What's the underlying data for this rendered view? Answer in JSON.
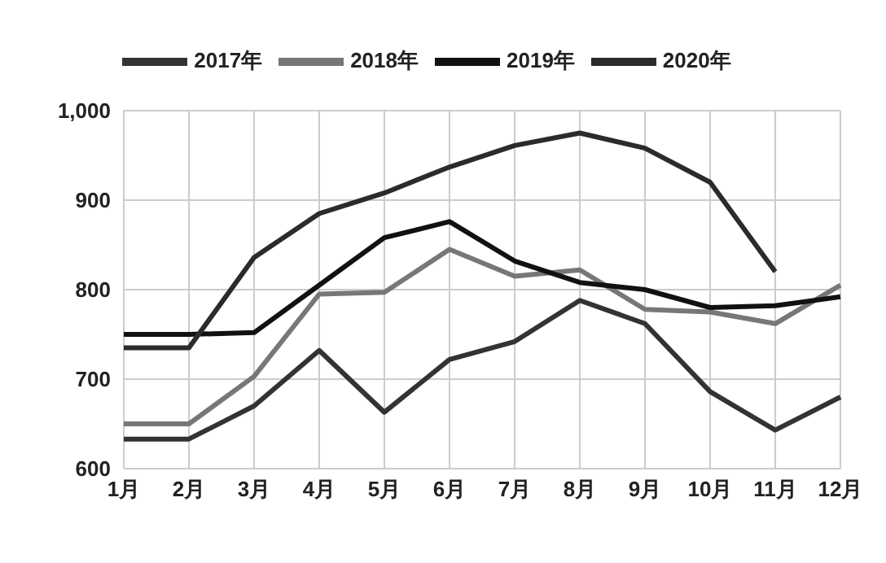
{
  "chart_data": {
    "type": "line",
    "categories": [
      "1月",
      "2月",
      "3月",
      "4月",
      "5月",
      "6月",
      "7月",
      "8月",
      "9月",
      "10月",
      "11月",
      "12月"
    ],
    "series": [
      {
        "name": "2017年",
        "color": "#333333",
        "values": [
          633,
          633,
          670,
          732,
          663,
          722,
          742,
          788,
          762,
          686,
          643,
          680
        ]
      },
      {
        "name": "2018年",
        "color": "#777777",
        "values": [
          650,
          650,
          703,
          795,
          797,
          845,
          815,
          822,
          778,
          775,
          762,
          805
        ]
      },
      {
        "name": "2019年",
        "color": "#111111",
        "values": [
          750,
          750,
          752,
          805,
          858,
          876,
          832,
          808,
          800,
          780,
          782,
          792
        ]
      },
      {
        "name": "2020年",
        "color": "#2b2b2b",
        "values": [
          735,
          735,
          836,
          885,
          908,
          937,
          961,
          975,
          958,
          920,
          820,
          null
        ]
      }
    ],
    "ylim": [
      600,
      1000
    ],
    "yticks": [
      {
        "value": 600,
        "label": "600"
      },
      {
        "value": 700,
        "label": "700"
      },
      {
        "value": 800,
        "label": "800"
      },
      {
        "value": 900,
        "label": "900"
      },
      {
        "value": 1000,
        "label": "1,000"
      }
    ],
    "grid": true,
    "legend": "top",
    "marker": "none",
    "line_style": "solid"
  }
}
